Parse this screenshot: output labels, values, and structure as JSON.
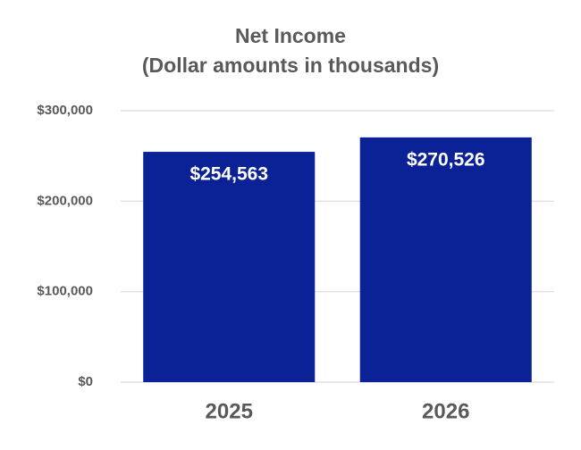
{
  "chart_data": {
    "type": "bar",
    "title": "Net Income",
    "subtitle": "(Dollar amounts in thousands)",
    "categories": [
      "2025",
      "2026"
    ],
    "values": [
      254563,
      270526
    ],
    "value_labels": [
      "$254,563",
      "$270,526"
    ],
    "color": "#0b2297",
    "ylim": [
      0,
      300000
    ],
    "yticks": [
      {
        "value": 0,
        "label": "$0"
      },
      {
        "value": 100000,
        "label": "$100,000"
      },
      {
        "value": 200000,
        "label": "$200,000"
      },
      {
        "value": 300000,
        "label": "$300,000"
      }
    ],
    "grid": true
  }
}
